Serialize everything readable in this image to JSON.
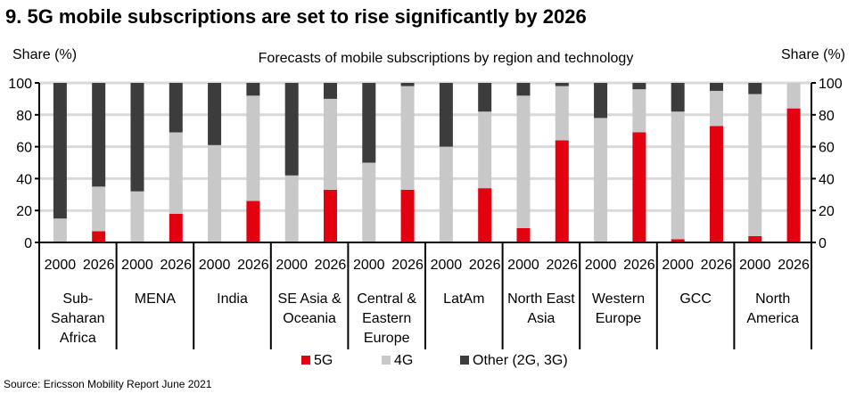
{
  "title": "9. 5G mobile subscriptions are set to rise significantly by 2026",
  "source": "Source: Ericsson Mobility Report June 2021",
  "chart_data": {
    "type": "bar",
    "stacked": true,
    "percent": true,
    "subtitle": "Forecasts of mobile subscriptions  by region and technology",
    "ylabel_left": "Share (%)",
    "ylabel_right": "Share (%)",
    "ylim": [
      0,
      100
    ],
    "yticks": [
      0,
      20,
      40,
      60,
      80,
      100
    ],
    "grid": true,
    "legend_position": "bottom",
    "groups": [
      {
        "label": "Sub-\nSaharan\nAfrica",
        "years": [
          "2000",
          "2026"
        ]
      },
      {
        "label": "MENA",
        "years": [
          "2000",
          "2026"
        ]
      },
      {
        "label": "India",
        "years": [
          "2000",
          "2026"
        ]
      },
      {
        "label": "SE Asia &\nOceania",
        "years": [
          "2000",
          "2026"
        ]
      },
      {
        "label": "Central &\nEastern\nEurope",
        "years": [
          "2000",
          "2026"
        ]
      },
      {
        "label": "LatAm",
        "years": [
          "2000",
          "2026"
        ]
      },
      {
        "label": "North East\nAsia",
        "years": [
          "2000",
          "2026"
        ]
      },
      {
        "label": "Western\nEurope",
        "years": [
          "2000",
          "2026"
        ]
      },
      {
        "label": "GCC",
        "years": [
          "2000",
          "2026"
        ]
      },
      {
        "label": "North\nAmerica",
        "years": [
          "2000",
          "2026"
        ]
      }
    ],
    "series": [
      {
        "name": "5G",
        "color": "#e3000f",
        "values": [
          0,
          7,
          0,
          18,
          0,
          26,
          0,
          33,
          0,
          33,
          0,
          34,
          9,
          64,
          0,
          69,
          2,
          73,
          4,
          84
        ]
      },
      {
        "name": "4G",
        "color": "#c8c8c8",
        "values": [
          15,
          28,
          32,
          51,
          61,
          66,
          42,
          57,
          50,
          65,
          60,
          48,
          83,
          34,
          78,
          27,
          80,
          22,
          89,
          16
        ]
      },
      {
        "name": "Other (2G, 3G)",
        "color": "#3c3c3c",
        "values": [
          85,
          65,
          68,
          31,
          39,
          8,
          58,
          10,
          50,
          2,
          40,
          18,
          8,
          2,
          22,
          4,
          18,
          5,
          7,
          0
        ]
      }
    ]
  }
}
